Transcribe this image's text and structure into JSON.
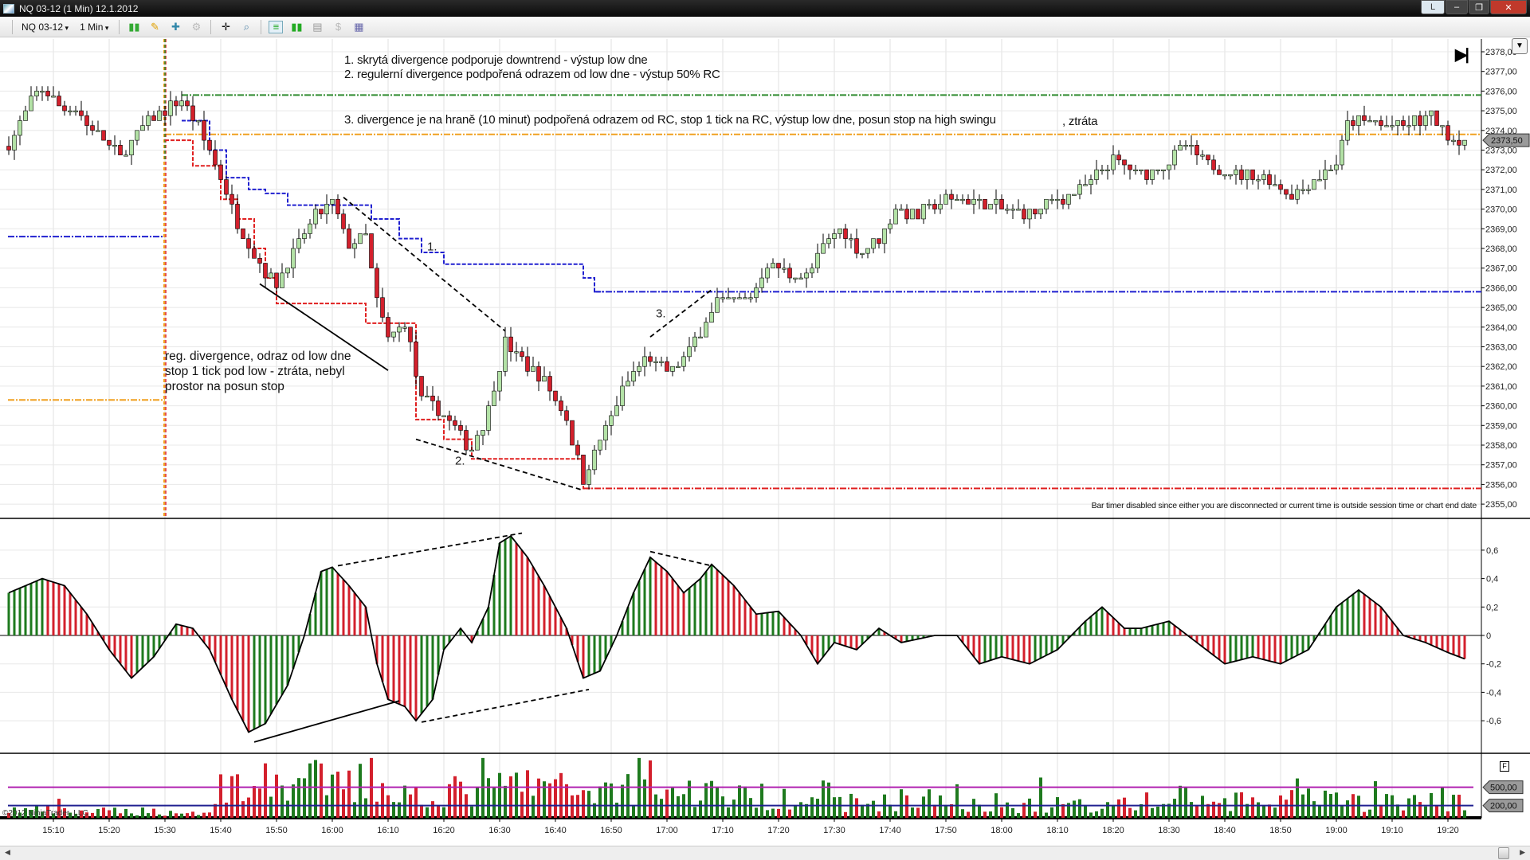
{
  "window": {
    "title": "NQ 03-12 (1 Min)  12.1.2012",
    "buttons": {
      "layout": "L",
      "minimize": "‒",
      "restore": "❐",
      "close": "✕"
    }
  },
  "toolbar": {
    "instrument": "NQ 03-12",
    "interval": "1 Min",
    "icons": [
      "bar-type-icon",
      "drawing-pencil-icon",
      "add-indicator-icon",
      "strategy-icon",
      "crosshair-icon",
      "zoom-icon",
      "chart-trader-icon",
      "data-box-icon",
      "chart-style-icon",
      "dollar-icon",
      "properties-icon"
    ]
  },
  "annotations": {
    "line1": "1. skrytá divergence podporuje downtrend - výstup low dne",
    "line2": "2. regulerní divergence podpořená odrazem od low dne - výstup 50% RC",
    "line3": "3. divergence je na hraně (10 minut) podpořená odrazem od RC, stop 1 tick na RC,  výstup low dne, posun stop na high swingu",
    "line3b": ", ztráta",
    "reg1": "reg. divergence, odraz od low dne",
    "reg2": "stop 1 tick pod low - ztráta, nebyl",
    "reg3": "prostor na posun stop",
    "label1": "1.",
    "label2": "2.",
    "label3": "3."
  },
  "bar_timer": "Bar timer disabled since either you are disconnected or current time is outside session time or chart end date",
  "copyright": "©2012 NinjaTrader, LLC",
  "go_end": "▶|",
  "panel_menu": "▼",
  "volume_button": "F",
  "colors": {
    "up": "#b3e2a6",
    "down": "#d3202c",
    "osc_up": "#1e7a1e",
    "osc_down": "#d3202c",
    "green_line": "#2e8b2e",
    "orange_line": "#f0a020",
    "blue_line": "#2020d0",
    "red_line": "#e02020",
    "vol_upper": "#b020b0",
    "vol_lower": "#202090"
  },
  "chart_data": {
    "type": "candlestick",
    "instrument": "NQ 03-12",
    "interval": "1 Min",
    "date": "12.1.2012",
    "price_axis": {
      "ticks": [
        "2378,00",
        "2377,00",
        "2376,00",
        "2375,00",
        "2374,00",
        "2373,00",
        "2372,00",
        "2371,00",
        "2370,00",
        "2369,00",
        "2368,00",
        "2367,00",
        "2366,00",
        "2365,00",
        "2364,00",
        "2363,00",
        "2362,00",
        "2361,00",
        "2360,00",
        "2359,00",
        "2358,00",
        "2357,00",
        "2356,00",
        "2355,00"
      ],
      "range": [
        2355,
        2378
      ],
      "last_price": "2373,50"
    },
    "osc_axis": {
      "ticks": [
        "0,6",
        "0,4",
        "0,2",
        "0",
        "-0,2",
        "-0,4",
        "-0,6"
      ]
    },
    "volume_axis": {
      "levels": [
        "500,00",
        "200,00"
      ]
    },
    "time_axis": {
      "ticks": [
        "15:10",
        "15:20",
        "15:30",
        "15:40",
        "15:50",
        "16:00",
        "16:10",
        "16:20",
        "16:30",
        "16:40",
        "16:50",
        "17:00",
        "17:10",
        "17:20",
        "17:30",
        "17:40",
        "17:50",
        "18:00",
        "18:10",
        "18:20",
        "18:30",
        "18:40",
        "18:50",
        "19:00",
        "19:10",
        "19:20"
      ]
    },
    "price_anchors": [
      [
        "15:02",
        2373.2
      ],
      [
        "15:06",
        2375.4
      ],
      [
        "15:08",
        2376.2
      ],
      [
        "15:11",
        2375.3
      ],
      [
        "15:14",
        2375
      ],
      [
        "15:18",
        2373.7
      ],
      [
        "15:22",
        2372.7
      ],
      [
        "15:26",
        2374.2
      ],
      [
        "15:30",
        2375
      ],
      [
        "15:33",
        2375.5
      ],
      [
        "15:36",
        2374.2
      ],
      [
        "15:40",
        2371.7
      ],
      [
        "15:43",
        2369.2
      ],
      [
        "15:47",
        2367.2
      ],
      [
        "15:50",
        2366.2
      ],
      [
        "15:53",
        2367.7
      ],
      [
        "15:57",
        2369.7
      ],
      [
        "16:00",
        2370.2
      ],
      [
        "16:03",
        2368.2
      ],
      [
        "16:06",
        2368.7
      ],
      [
        "16:08",
        2365.3
      ],
      [
        "16:10",
        2363.3
      ],
      [
        "16:13",
        2364.3
      ],
      [
        "16:16",
        2360.3
      ],
      [
        "16:19",
        2359.8
      ],
      [
        "16:22",
        2358.8
      ],
      [
        "16:25",
        2357.8
      ],
      [
        "16:28",
        2359.8
      ],
      [
        "16:31",
        2363.3
      ],
      [
        "16:35",
        2362
      ],
      [
        "16:38",
        2361.3
      ],
      [
        "16:42",
        2359.3
      ],
      [
        "16:45",
        2356.3
      ],
      [
        "16:48",
        2358.3
      ],
      [
        "16:52",
        2360.8
      ],
      [
        "16:56",
        2362.5
      ],
      [
        "17:00",
        2361.7
      ],
      [
        "17:03",
        2362.3
      ],
      [
        "17:06",
        2363.8
      ],
      [
        "17:09",
        2365.3
      ],
      [
        "17:15",
        2365.5
      ],
      [
        "17:18",
        2367.2
      ],
      [
        "17:22",
        2366.7
      ],
      [
        "17:25",
        2366.5
      ],
      [
        "17:28",
        2368.2
      ],
      [
        "17:31",
        2369
      ],
      [
        "17:35",
        2367.7
      ],
      [
        "17:38",
        2368.5
      ],
      [
        "17:41",
        2370
      ],
      [
        "17:45",
        2369.7
      ],
      [
        "17:50",
        2370.5
      ],
      [
        "17:55",
        2370.5
      ],
      [
        "18:00",
        2370
      ],
      [
        "18:05",
        2369.7
      ],
      [
        "18:10",
        2370.5
      ],
      [
        "18:15",
        2371.2
      ],
      [
        "18:20",
        2372.4
      ],
      [
        "18:25",
        2371.7
      ],
      [
        "18:30",
        2372.4
      ],
      [
        "18:33",
        2373.2
      ],
      [
        "18:38",
        2372.2
      ],
      [
        "18:42",
        2371.7
      ],
      [
        "18:47",
        2371.7
      ],
      [
        "18:52",
        2370.7
      ],
      [
        "18:56",
        2371.5
      ],
      [
        "19:00",
        2372.4
      ],
      [
        "19:02",
        2374.4
      ],
      [
        "19:06",
        2374.4
      ],
      [
        "19:12",
        2374.2
      ],
      [
        "19:17",
        2374.7
      ],
      [
        "19:20",
        2373.7
      ],
      [
        "19:23",
        2373.5
      ]
    ],
    "osc_anchors": [
      [
        "15:02",
        0.3
      ],
      [
        "15:05",
        0.35
      ],
      [
        "15:08",
        0.4
      ],
      [
        "15:12",
        0.35
      ],
      [
        "15:16",
        0.15
      ],
      [
        "15:20",
        -0.1
      ],
      [
        "15:24",
        -0.3
      ],
      [
        "15:28",
        -0.15
      ],
      [
        "15:32",
        0.08
      ],
      [
        "15:35",
        0.05
      ],
      [
        "15:38",
        -0.1
      ],
      [
        "15:42",
        -0.45
      ],
      [
        "15:45",
        -0.68
      ],
      [
        "15:48",
        -0.62
      ],
      [
        "15:52",
        -0.35
      ],
      [
        "15:55",
        0
      ],
      [
        "15:58",
        0.45
      ],
      [
        "16:00",
        0.48
      ],
      [
        "16:03",
        0.35
      ],
      [
        "16:06",
        0.2
      ],
      [
        "16:08",
        -0.2
      ],
      [
        "16:10",
        -0.45
      ],
      [
        "16:13",
        -0.5
      ],
      [
        "16:15",
        -0.6
      ],
      [
        "16:18",
        -0.45
      ],
      [
        "16:20",
        -0.1
      ],
      [
        "16:23",
        0.05
      ],
      [
        "16:25",
        -0.05
      ],
      [
        "16:28",
        0.2
      ],
      [
        "16:30",
        0.65
      ],
      [
        "16:32",
        0.7
      ],
      [
        "16:35",
        0.55
      ],
      [
        "16:38",
        0.35
      ],
      [
        "16:42",
        0.05
      ],
      [
        "16:45",
        -0.3
      ],
      [
        "16:48",
        -0.25
      ],
      [
        "16:51",
        0
      ],
      [
        "16:54",
        0.3
      ],
      [
        "16:57",
        0.55
      ],
      [
        "17:00",
        0.45
      ],
      [
        "17:03",
        0.3
      ],
      [
        "17:06",
        0.4
      ],
      [
        "17:08",
        0.5
      ],
      [
        "17:12",
        0.35
      ],
      [
        "17:16",
        0.15
      ],
      [
        "17:20",
        0.17
      ],
      [
        "17:24",
        0
      ],
      [
        "17:27",
        -0.2
      ],
      [
        "17:30",
        -0.05
      ],
      [
        "17:34",
        -0.1
      ],
      [
        "17:38",
        0.05
      ],
      [
        "17:42",
        -0.05
      ],
      [
        "17:48",
        0
      ],
      [
        "17:52",
        0
      ],
      [
        "17:56",
        -0.2
      ],
      [
        "18:00",
        -0.15
      ],
      [
        "18:05",
        -0.2
      ],
      [
        "18:10",
        -0.1
      ],
      [
        "18:15",
        0.1
      ],
      [
        "18:18",
        0.2
      ],
      [
        "18:22",
        0.05
      ],
      [
        "18:25",
        0.05
      ],
      [
        "18:30",
        0.1
      ],
      [
        "18:35",
        -0.05
      ],
      [
        "18:40",
        -0.2
      ],
      [
        "18:45",
        -0.15
      ],
      [
        "18:50",
        -0.2
      ],
      [
        "18:55",
        -0.1
      ],
      [
        "19:00",
        0.2
      ],
      [
        "19:04",
        0.32
      ],
      [
        "19:08",
        0.2
      ],
      [
        "19:12",
        0
      ],
      [
        "19:16",
        -0.05
      ],
      [
        "19:20",
        -0.12
      ],
      [
        "19:24",
        -0.18
      ]
    ],
    "volume_levels_by_10min": [
      150,
      120,
      130,
      100,
      650,
      700,
      600,
      450,
      500,
      650,
      550,
      600,
      500,
      400,
      450,
      300,
      350,
      300,
      250,
      250,
      300,
      300,
      300,
      350,
      300,
      300,
      350
    ],
    "horizontal_lines": [
      {
        "color": "green",
        "price": 2375.8,
        "from": "15:33",
        "to": "end"
      },
      {
        "color": "orange",
        "price": 2373.8,
        "from": "15:30",
        "to": "end"
      },
      {
        "color": "orange",
        "price": 2360.3,
        "from": "start",
        "to": "15:30"
      },
      {
        "color": "blue",
        "price": 2368.6,
        "from": "start",
        "to": "15:30"
      },
      {
        "color": "blue",
        "price": 2365.8,
        "from": "16:47",
        "to": "end"
      },
      {
        "color": "red",
        "price": 2355.8,
        "from": "16:45",
        "to": "end"
      }
    ],
    "red_steps": [
      [
        "15:30",
        2373.5
      ],
      [
        "15:35",
        2372.2
      ],
      [
        "15:40",
        2370.5
      ],
      [
        "15:43",
        2369.5
      ],
      [
        "15:46",
        2368
      ],
      [
        "15:48",
        2366.5
      ],
      [
        "15:50",
        2365.2
      ],
      [
        "16:06",
        2364.2
      ],
      [
        "16:15",
        2359.3
      ],
      [
        "16:20",
        2358.3
      ],
      [
        "16:25",
        2357.3
      ],
      [
        "16:45",
        2355.8
      ]
    ],
    "blue_steps": [
      [
        "15:33",
        2374.5
      ],
      [
        "15:38",
        2373
      ],
      [
        "15:41",
        2371.6
      ],
      [
        "15:45",
        2371
      ],
      [
        "15:48",
        2370.8
      ],
      [
        "15:52",
        2370.2
      ],
      [
        "16:07",
        2369.5
      ],
      [
        "16:12",
        2368.5
      ],
      [
        "16:16",
        2367.8
      ],
      [
        "16:20",
        2367.2
      ],
      [
        "16:45",
        2366.5
      ],
      [
        "16:47",
        2365.8
      ]
    ],
    "trend_lines": [
      {
        "panel": "price",
        "style": "solid",
        "from": [
          "15:47",
          2366.2
        ],
        "to": [
          "16:10",
          2361.8
        ]
      },
      {
        "panel": "price",
        "style": "dashed",
        "from": [
          "16:02",
          2370.6
        ],
        "to": [
          "16:31",
          2363.8
        ]
      },
      {
        "panel": "price",
        "style": "dashed",
        "from": [
          "16:15",
          2358.3
        ],
        "to": [
          "16:45",
          2355.7
        ]
      },
      {
        "panel": "price",
        "style": "dashed",
        "from": [
          "16:57",
          2363.5
        ],
        "to": [
          "17:08",
          2365.9
        ]
      },
      {
        "panel": "osc",
        "style": "solid",
        "from": [
          "15:46",
          -0.75
        ],
        "to": [
          "16:12",
          -0.46
        ]
      },
      {
        "panel": "osc",
        "style": "dashed",
        "from": [
          "16:01",
          0.49
        ],
        "to": [
          "16:34",
          0.72
        ]
      },
      {
        "panel": "osc",
        "style": "dashed",
        "from": [
          "16:16",
          -0.61
        ],
        "to": [
          "16:46",
          -0.38
        ]
      },
      {
        "panel": "osc",
        "style": "dashed",
        "from": [
          "16:57",
          0.59
        ],
        "to": [
          "17:08",
          0.49
        ]
      }
    ]
  }
}
